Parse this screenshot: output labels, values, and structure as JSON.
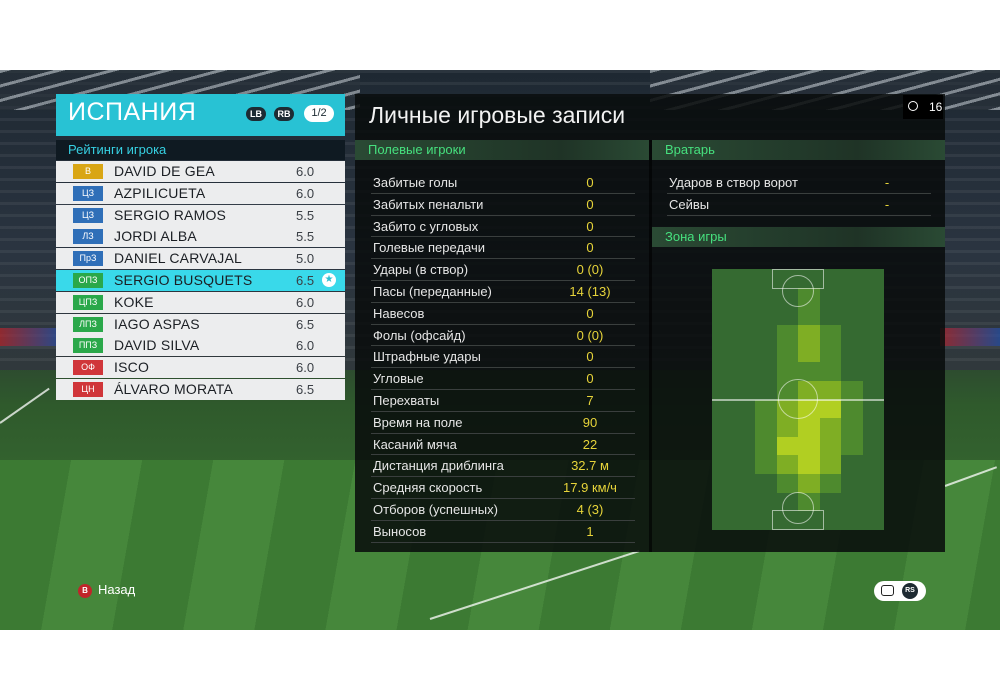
{
  "team": {
    "name": "ИСПАНИЯ",
    "buttons": [
      "LB",
      "RB"
    ],
    "page_indicator": "1/2"
  },
  "ratings": {
    "title": "Рейтинги игрока",
    "players": [
      {
        "pos": "В",
        "pos_color": "#d9a614",
        "name": "DAVID DE GEA",
        "rating": "6.0",
        "selected": false
      },
      {
        "pos": "ЦЗ",
        "pos_color": "#2f6fb8",
        "name": "AZPILICUETA",
        "rating": "6.0",
        "selected": false
      },
      {
        "pos": "ЦЗ",
        "pos_color": "#2f6fb8",
        "name": "SERGIO RAMOS",
        "rating": "5.5",
        "selected": false
      },
      {
        "pos": "ЛЗ",
        "pos_color": "#2f6fb8",
        "name": "JORDI ALBA",
        "rating": "5.5",
        "selected": false
      },
      {
        "pos": "ПрЗ",
        "pos_color": "#2f6fb8",
        "name": "DANIEL CARVAJAL",
        "rating": "5.0",
        "selected": false
      },
      {
        "pos": "ОПЗ",
        "pos_color": "#2aa84a",
        "name": "SERGIO BUSQUETS",
        "rating": "6.5",
        "selected": true
      },
      {
        "pos": "ЦПЗ",
        "pos_color": "#2aa84a",
        "name": "KOKE",
        "rating": "6.0",
        "selected": false
      },
      {
        "pos": "ЛПЗ",
        "pos_color": "#2aa84a",
        "name": "IAGO ASPAS",
        "rating": "6.5",
        "selected": false
      },
      {
        "pos": "ППЗ",
        "pos_color": "#2aa84a",
        "name": "DAVID SILVA",
        "rating": "6.0",
        "selected": false
      },
      {
        "pos": "ОФ",
        "pos_color": "#d0363a",
        "name": "ISCO",
        "rating": "6.0",
        "selected": false
      },
      {
        "pos": "ЦН",
        "pos_color": "#d0363a",
        "name": "ÁLVARO MORATA",
        "rating": "6.5",
        "selected": false
      }
    ]
  },
  "records": {
    "title": "Личные игровые записи",
    "field_header": "Полевые игроки",
    "field_stats": [
      {
        "label": "Забитые голы",
        "value": "0"
      },
      {
        "label": "Забитых пенальти",
        "value": "0"
      },
      {
        "label": "Забито с угловых",
        "value": "0"
      },
      {
        "label": "Голевые передачи",
        "value": "0"
      },
      {
        "label": "Удары (в створ)",
        "value": "0 (0)"
      },
      {
        "label": "Пасы (переданные)",
        "value": "14 (13)"
      },
      {
        "label": "Навесов",
        "value": "0"
      },
      {
        "label": "Фолы (офсайд)",
        "value": "0 (0)"
      },
      {
        "label": "Штрафные удары",
        "value": "0"
      },
      {
        "label": "Угловые",
        "value": "0"
      },
      {
        "label": "Перехваты",
        "value": "7"
      },
      {
        "label": "Время на поле",
        "value": "90"
      },
      {
        "label": "Касаний мяча",
        "value": "22"
      },
      {
        "label": "Дистанция дриблинга",
        "value": "32.7 м"
      },
      {
        "label": "Средняя скорость",
        "value": "17.9 км/ч"
      },
      {
        "label": "Отборов (успешных)",
        "value": "4 (3)"
      },
      {
        "label": "Выносов",
        "value": "1"
      }
    ],
    "gk_header": "Вратарь",
    "gk_stats": [
      {
        "label": "Ударов в створ ворот",
        "value": "-"
      },
      {
        "label": "Сейвы",
        "value": "-"
      }
    ],
    "zone_header": "Зона игры"
  },
  "timer": {
    "value": "16",
    "icon": "clock-icon"
  },
  "footer": {
    "back_button": "B",
    "back_label": "Назад",
    "rs_button": "RS",
    "chat_icon": "chat-icon"
  },
  "heatmap_levels": [
    [
      0,
      0,
      0,
      0,
      0,
      0,
      0,
      0
    ],
    [
      0,
      0,
      0,
      0,
      1,
      0,
      0,
      0
    ],
    [
      0,
      0,
      0,
      0,
      1,
      0,
      0,
      0
    ],
    [
      0,
      0,
      0,
      1,
      2,
      1,
      0,
      0
    ],
    [
      0,
      0,
      0,
      1,
      2,
      1,
      0,
      0
    ],
    [
      0,
      0,
      0,
      1,
      1,
      1,
      0,
      0
    ],
    [
      0,
      0,
      0,
      1,
      2,
      2,
      1,
      0
    ],
    [
      0,
      0,
      1,
      2,
      3,
      3,
      1,
      0
    ],
    [
      0,
      0,
      1,
      2,
      3,
      2,
      1,
      0
    ],
    [
      0,
      0,
      1,
      3,
      3,
      2,
      1,
      0
    ],
    [
      0,
      0,
      1,
      2,
      3,
      2,
      0,
      0
    ],
    [
      0,
      0,
      0,
      1,
      2,
      1,
      0,
      0
    ],
    [
      0,
      0,
      0,
      0,
      1,
      0,
      0,
      0
    ],
    [
      0,
      0,
      0,
      0,
      0,
      0,
      0,
      0
    ]
  ]
}
